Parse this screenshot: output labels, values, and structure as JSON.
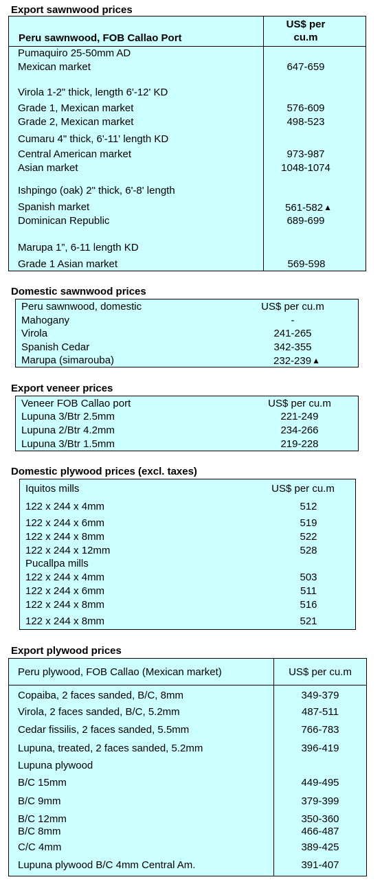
{
  "sections": {
    "export_sawnwood": {
      "title": "Export sawnwood prices",
      "header_left": "Peru sawnwood, FOB Callao Port",
      "header_right_1": "US$ per",
      "header_right_2": "cu.m",
      "rows": [
        {
          "label": "Pumaquiro 25-50mm AD",
          "value": ""
        },
        {
          "label": "Mexican market",
          "value": "647-659"
        },
        {
          "label": "Virola  1-2\" thick, length  6'-12' KD",
          "value": ""
        },
        {
          "label": "Grade 1, Mexican market",
          "value": "576-609"
        },
        {
          "label": "Grade 2, Mexican market",
          "value": "498-523"
        },
        {
          "label": "Cumaru 4\" thick, 6'-11' length KD",
          "value": ""
        },
        {
          "label": "Central American market",
          "value": "973-987"
        },
        {
          "label": "Asian market",
          "value": "1048-1074"
        },
        {
          "label": "Ishpingo (oak) 2\" thick, 6'-8' length",
          "value": ""
        },
        {
          "label": "Spanish market",
          "value": "561-582"
        },
        {
          "label": "Dominican Republic",
          "value": "689-699"
        },
        {
          "label": "Marupa  1”, 6-11 length KD",
          "value": ""
        },
        {
          "label": "Grade 1 Asian market",
          "value": "569-598"
        }
      ]
    },
    "domestic_sawnwood": {
      "title": "Domestic sawnwood prices",
      "header_left": "Peru sawnwood, domestic",
      "header_right": "US$ per cu.m",
      "rows": [
        {
          "label": "Mahogany",
          "value": "-"
        },
        {
          "label": "Virola",
          "value": "241-265"
        },
        {
          "label": "Spanish Cedar",
          "value": "342-355"
        },
        {
          "label": "Marupa (simarouba)",
          "value": "232-239"
        }
      ]
    },
    "export_veneer": {
      "title": "Export veneer prices",
      "header_left": "Veneer  FOB Callao port",
      "header_right": "US$ per cu.m",
      "rows": [
        {
          "label": "Lupuna 3/Btr 2.5mm",
          "value": "221-249"
        },
        {
          "label": "Lupuna 2/Btr 4.2mm",
          "value": "234-266"
        },
        {
          "label": "Lupuna 3/Btr 1.5mm",
          "value": "219-228"
        }
      ]
    },
    "domestic_plywood": {
      "title": "Domestic plywood prices (excl. taxes)",
      "header_left": "Iquitos mills",
      "header_right": "US$ per cu.m",
      "rows": [
        {
          "label": "122 x 244 x 4mm",
          "value": "512"
        },
        {
          "label": "122 x 244 x 6mm",
          "value": "519"
        },
        {
          "label": "122 x 244 x 8mm",
          "value": "522"
        },
        {
          "label": "122 x 244 x 12mm",
          "value": "528"
        },
        {
          "label": "Pucallpa mills",
          "value": ""
        },
        {
          "label": "122 x 244 x 4mm",
          "value": "503"
        },
        {
          "label": "122 x 244 x 6mm",
          "value": "511"
        },
        {
          "label": "122 x 244 x 8mm",
          "value": "516"
        },
        {
          "label": "122 x 244 x 8mm",
          "value": "521"
        }
      ]
    },
    "export_plywood": {
      "title": "Export plywood prices",
      "header_left": "Peru plywood, FOB Callao (Mexican market)",
      "header_right": "US$ per cu.m",
      "rows": [
        {
          "label": "Copaiba, 2 faces sanded, B/C, 8mm",
          "value": "349-379"
        },
        {
          "label": "Virola, 2 faces sanded, B/C, 5.2mm",
          "value": "487-511"
        },
        {
          "label": "Cedar fissilis, 2 faces sanded, 5.5mm",
          "value": "766-783"
        },
        {
          "label": "Lupuna, treated, 2 faces sanded, 5.2mm",
          "value": "396-419"
        },
        {
          "label": "Lupuna plywood",
          "value": ""
        },
        {
          "label": "B/C 15mm",
          "value": "449-495"
        },
        {
          "label": "B/C 9mm",
          "value": "379-399"
        },
        {
          "label": "B/C 12mm",
          "value": "350-360"
        },
        {
          "label": "B/C 8mm",
          "value": "466-487"
        },
        {
          "label": "C/C 4mm",
          "value": "389-425"
        },
        {
          "label": "Lupuna plywood B/C 4mm Central Am.",
          "value": "391-407"
        }
      ]
    }
  },
  "icons": {
    "up_arrow": "arrow-up-icon"
  },
  "colors": {
    "table_fill": "#ccffff"
  }
}
